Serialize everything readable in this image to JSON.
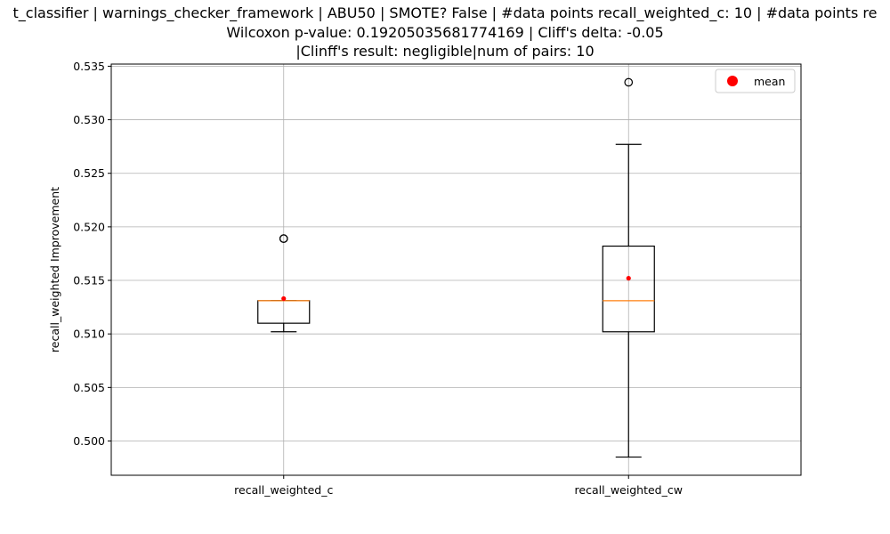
{
  "chart_data": {
    "type": "box",
    "title_lines": [
      "t_classifier | warnings_checker_framework | ABU50 | SMOTE? False | #data points recall_weighted_c: 10 | #data points re",
      "Wilcoxon p-value: 0.19205035681774169 | Cliff's delta: -0.05",
      "|Clinff's result: negligible|num of pairs: 10"
    ],
    "xlabel": "",
    "ylabel": "recall_weighted Improvement",
    "ylim": [
      0.4968,
      0.5352
    ],
    "yticks": [
      0.5,
      0.505,
      0.51,
      0.515,
      0.52,
      0.525,
      0.53,
      0.535
    ],
    "ytick_labels": [
      "0.500",
      "0.505",
      "0.510",
      "0.515",
      "0.520",
      "0.525",
      "0.530",
      "0.535"
    ],
    "categories": [
      "recall_weighted_c",
      "recall_weighted_cw"
    ],
    "boxes": [
      {
        "name": "recall_weighted_c",
        "whisker_low": 0.5102,
        "q1": 0.511,
        "median": 0.5131,
        "q3": 0.5131,
        "whisker_high": 0.5131,
        "mean": 0.5133,
        "outliers": [
          0.5189,
          0.5189
        ]
      },
      {
        "name": "recall_weighted_cw",
        "whisker_low": 0.4985,
        "q1": 0.5102,
        "median": 0.5131,
        "q3": 0.5182,
        "whisker_high": 0.5277,
        "mean": 0.5152,
        "outliers": [
          0.5335
        ]
      }
    ],
    "legend": {
      "position": "top-right",
      "entries": [
        {
          "label": "mean",
          "color": "#ff0000"
        }
      ]
    },
    "grid": true,
    "colors": {
      "box": "#000000",
      "median": "#ff7f0e",
      "mean": "#ff0000",
      "grid": "#b0b0b0"
    }
  }
}
